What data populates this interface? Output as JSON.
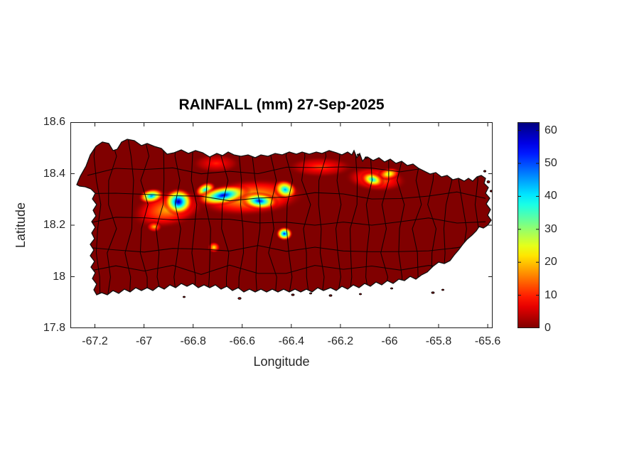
{
  "figure": {
    "title": "RAINFALL (mm) 27-Sep-2025",
    "xlabel": "Longitude",
    "ylabel": "Latitude"
  },
  "colors": {
    "background": "#ffffff",
    "land_zero_rain": "#800000",
    "axis": "#1a1a1a",
    "tick_text": "#262626",
    "boundary_lines": "#000000"
  },
  "chart_data": {
    "type": "heatmap",
    "subtype": "filled-contour rainfall map over Puerto Rico municipalities",
    "title": "RAINFALL (mm) 27-Sep-2025",
    "xlabel": "Longitude",
    "ylabel": "Latitude",
    "xlim": [
      -67.3,
      -65.58
    ],
    "ylim": [
      17.8,
      18.6
    ],
    "xticks": [
      -67.2,
      -67,
      -66.8,
      -66.6,
      -66.4,
      -66.2,
      -66,
      -65.8,
      -65.6
    ],
    "xtick_labels": [
      "-67.2",
      "-67",
      "-66.8",
      "-66.6",
      "-66.4",
      "-66.2",
      "-66",
      "-65.8",
      "-65.6"
    ],
    "yticks": [
      18.6,
      18.4,
      18.2,
      18,
      17.8
    ],
    "ytick_labels": [
      "18.6",
      "18.4",
      "18.2",
      "18",
      "17.8"
    ],
    "grid": false,
    "colorbar": {
      "position": "right",
      "min": 0,
      "max": 62.5,
      "ticks": [
        0,
        10,
        20,
        30,
        40,
        50,
        60
      ],
      "tick_labels": [
        "0",
        "10",
        "20",
        "30",
        "40",
        "50",
        "60"
      ],
      "colormap": "jet reversed (0 mm = dark red, 60+ mm = dark blue)"
    },
    "base_rainfall_mm": 0,
    "hotspots": [
      {
        "id": "north-coast-west-enhancement",
        "lon": -66.706,
        "lat": 18.44,
        "peak_mm": 10,
        "rx_deg": 0.101,
        "ry_deg": 0.039,
        "rot": 0
      },
      {
        "id": "north-central-enhancement",
        "lon": -66.281,
        "lat": 18.426,
        "peak_mm": 12,
        "rx_deg": 0.139,
        "ry_deg": 0.041,
        "rot": 0
      },
      {
        "id": "east-north-enhancement",
        "lon": -65.794,
        "lat": 18.421,
        "peak_mm": 10,
        "rx_deg": 0.072,
        "ry_deg": 0.033,
        "rot": 0
      },
      {
        "id": "west-halo",
        "lon": -66.9,
        "lat": 18.263,
        "peak_mm": 20,
        "rx_deg": 0.159,
        "ry_deg": 0.074,
        "rot": -12
      },
      {
        "id": "central-halo",
        "lon": -66.567,
        "lat": 18.308,
        "peak_mm": 24,
        "rx_deg": 0.232,
        "ry_deg": 0.074,
        "rot": -4
      },
      {
        "id": "northeast-halo",
        "lon": -66.055,
        "lat": 18.379,
        "peak_mm": 18,
        "rx_deg": 0.13,
        "ry_deg": 0.05,
        "rot": 5
      },
      {
        "id": "west-south-spot",
        "lon": -66.958,
        "lat": 18.194,
        "peak_mm": 20,
        "rx_deg": 0.032,
        "ry_deg": 0.022,
        "rot": 0
      },
      {
        "id": "south-yellow-dot",
        "lon": -66.715,
        "lat": 18.114,
        "peak_mm": 24,
        "rx_deg": 0.026,
        "ry_deg": 0.022,
        "rot": 0
      },
      {
        "id": "west-central-bridge",
        "lon": -66.75,
        "lat": 18.338,
        "peak_mm": 42,
        "rx_deg": 0.046,
        "ry_deg": 0.028,
        "rot": -25
      },
      {
        "id": "west-blob-inner",
        "lon": -66.97,
        "lat": 18.313,
        "peak_mm": 48,
        "rx_deg": 0.055,
        "ry_deg": 0.03,
        "rot": -10
      },
      {
        "id": "west-blob-max",
        "lon": -66.86,
        "lat": 18.291,
        "peak_mm": 62,
        "rx_deg": 0.064,
        "ry_deg": 0.055,
        "rot": 0
      },
      {
        "id": "cordillera-core-west",
        "lon": -66.677,
        "lat": 18.316,
        "peak_mm": 58,
        "rx_deg": 0.116,
        "ry_deg": 0.039,
        "rot": -10
      },
      {
        "id": "cordillera-core-east",
        "lon": -66.53,
        "lat": 18.294,
        "peak_mm": 56,
        "rx_deg": 0.081,
        "ry_deg": 0.036,
        "rot": 5
      },
      {
        "id": "central-cyan-northeast",
        "lon": -66.425,
        "lat": 18.338,
        "peak_mm": 46,
        "rx_deg": 0.052,
        "ry_deg": 0.039,
        "rot": 20
      },
      {
        "id": "northeast-east-lobe",
        "lon": -66.003,
        "lat": 18.399,
        "peak_mm": 30,
        "rx_deg": 0.049,
        "ry_deg": 0.025,
        "rot": -10
      },
      {
        "id": "northeast-west-lobe",
        "lon": -66.069,
        "lat": 18.377,
        "peak_mm": 42,
        "rx_deg": 0.052,
        "ry_deg": 0.03,
        "rot": 15
      },
      {
        "id": "south-central-intense",
        "lon": -66.428,
        "lat": 18.167,
        "peak_mm": 54,
        "rx_deg": 0.035,
        "ry_deg": 0.028,
        "rot": 0
      }
    ]
  }
}
